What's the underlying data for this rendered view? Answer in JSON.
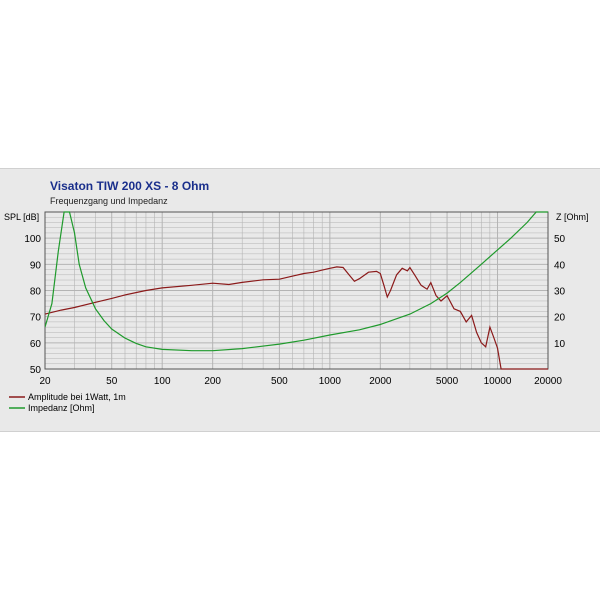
{
  "chart_data": {
    "type": "line",
    "title": "Visaton TIW 200 XS - 8 Ohm",
    "subtitle": "Frequenzgang und Impedanz",
    "x_scale": "log",
    "xlim": [
      20,
      20000
    ],
    "x_ticks": [
      20,
      50,
      100,
      200,
      500,
      1000,
      2000,
      5000,
      10000,
      20000
    ],
    "y_left": {
      "label": "SPL [dB]",
      "lim": [
        50,
        110
      ],
      "ticks": [
        50,
        60,
        70,
        80,
        90,
        100
      ]
    },
    "y_right": {
      "label": "Z [Ohm]",
      "lim": [
        0,
        60
      ],
      "ticks": [
        10,
        20,
        30,
        40,
        50
      ]
    },
    "grid": true,
    "legend_placement": "bottom-left",
    "colors": {
      "background": "#e9e9e9",
      "grid": "#b4b4b4",
      "spl": "#8b1a1a",
      "impedance": "#1f9a2c",
      "title": "#1a2f8c"
    },
    "series": [
      {
        "name": "Amplitude bei 1Watt, 1m",
        "axis": "left",
        "color": "#8b1a1a",
        "x": [
          20,
          25,
          30,
          40,
          50,
          60,
          80,
          100,
          150,
          200,
          250,
          300,
          400,
          500,
          600,
          700,
          800,
          900,
          1000,
          1100,
          1200,
          1300,
          1400,
          1500,
          1700,
          1900,
          2000,
          2100,
          2200,
          2300,
          2500,
          2700,
          2900,
          3000,
          3200,
          3500,
          3800,
          4000,
          4300,
          4600,
          5000,
          5500,
          6000,
          6500,
          7000,
          7500,
          8000,
          8500,
          9000,
          9500,
          10000,
          10500,
          11000,
          20000
        ],
        "y": [
          71,
          72.5,
          73.5,
          75.5,
          77,
          78.3,
          80,
          81,
          82,
          82.8,
          82.3,
          83.1,
          84.1,
          84.3,
          85.5,
          86.5,
          87,
          87.8,
          88.5,
          89,
          88.8,
          86,
          83.5,
          84.5,
          87,
          87.3,
          86.5,
          82,
          77.5,
          80,
          86,
          88.5,
          87.5,
          88.8,
          86,
          82,
          80.5,
          83,
          78,
          76,
          78,
          73,
          72,
          68,
          70.5,
          64,
          60,
          58.5,
          66,
          62,
          58,
          50,
          50,
          50
        ]
      },
      {
        "name": "Impedanz [Ohm]",
        "axis": "right",
        "color": "#1f9a2c",
        "x": [
          20,
          22,
          24,
          26,
          28,
          30,
          32,
          35,
          40,
          45,
          50,
          60,
          70,
          80,
          100,
          150,
          200,
          300,
          500,
          700,
          1000,
          1500,
          2000,
          3000,
          4000,
          5000,
          6000,
          8000,
          10000,
          12000,
          15000,
          17000,
          20000
        ],
        "y": [
          16,
          25,
          45,
          60,
          60,
          52,
          40,
          31,
          23,
          18.5,
          15.3,
          11.8,
          9.8,
          8.5,
          7.5,
          7,
          7,
          7.8,
          9.5,
          11,
          13,
          15,
          17,
          21,
          25,
          29,
          33,
          40,
          45.5,
          50,
          56,
          60,
          60
        ]
      }
    ]
  }
}
